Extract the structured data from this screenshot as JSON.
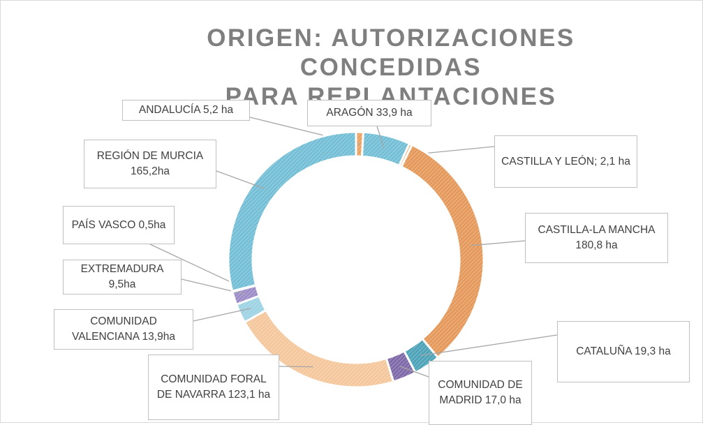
{
  "chart_data": {
    "type": "donut",
    "title": "ORIGEN: AUTORIZACIONES CONCEDIDAS\nPARA REPLANTACIONES",
    "values": [
      5.2,
      33.9,
      2.1,
      180.8,
      19.3,
      17.0,
      123.1,
      13.9,
      9.5,
      0.5,
      165.2
    ],
    "value_labels": [
      "ANDALUCÍA 5,2 ha",
      "ARAGÓN 33,9 ha",
      "CASTILLA Y LEÓN; 2,1 ha",
      "CASTILLA-LA MANCHA 180,8 ha",
      "CATALUÑA 19,3 ha",
      "COMUNIDAD DE MADRID 17,0 ha",
      "COMUNIDAD FORAL DE NAVARRA 123,1 ha",
      "COMUNIDAD VALENCIANA 13,9ha",
      "EXTREMADURA 9,5ha",
      "PAÍS VASCO 0,5ha",
      "REGIÓN DE MURCIA 165,2ha"
    ],
    "colors": [
      "#e9a263",
      "#74bfd6",
      "#e9a263",
      "#e59a5c",
      "#4ea3b8",
      "#7e6aa8",
      "#f4c79c",
      "#9dd3e3",
      "#9c8cc8",
      "#74bfd6",
      "#74bfd6"
    ]
  }
}
